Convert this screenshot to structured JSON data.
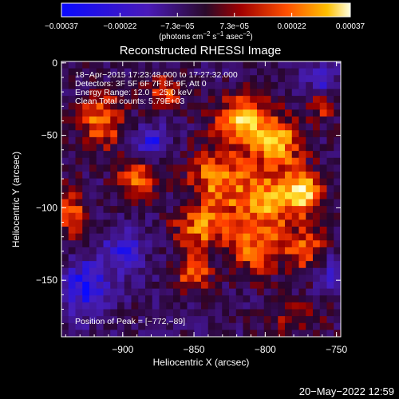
{
  "chart_data": {
    "type": "heatmap",
    "title": "Reconstructed RHESSI Image",
    "xlabel": "Heliocentric X (arcsec)",
    "ylabel": "Heliocentric Y (arcsec)",
    "xlim": [
      -943,
      -747
    ],
    "ylim": [
      -189,
      1
    ],
    "xticks": [
      {
        "value": -900,
        "label": "−900"
      },
      {
        "value": -850,
        "label": "−850"
      },
      {
        "value": -800,
        "label": "−800"
      },
      {
        "value": -750,
        "label": "−750"
      }
    ],
    "yticks": [
      {
        "value": 0,
        "label": "0"
      },
      {
        "value": -50,
        "label": "−50"
      },
      {
        "value": -100,
        "label": "−100"
      },
      {
        "value": -150,
        "label": "−150"
      }
    ],
    "colorbar": {
      "range": [
        -0.00037,
        0.00037
      ],
      "ticks": [
        {
          "value": -0.00037,
          "label": "−0.00037"
        },
        {
          "value": -0.00022,
          "label": "−0.00022"
        },
        {
          "value": -7.3e-05,
          "label": "−7.3e−05"
        },
        {
          "value": 7.3e-05,
          "label": "7.3e−05"
        },
        {
          "value": 0.00022,
          "label": "0.00022"
        },
        {
          "value": 0.00037,
          "label": "0.00037"
        }
      ],
      "unit_main": "(photons cm",
      "unit_sup1": "−2",
      "unit_mid": " s",
      "unit_sup2": "−1",
      "unit_mid2": " asec",
      "unit_sup3": "−2",
      "unit_end": ")"
    },
    "annotations": {
      "time": "18−Apr−2015 17:23:48.000 to 17:27:32.000",
      "detectors": "Detectors: 3F 5F 6F 7F 8F 9F, Att 0",
      "energy": "Energy Range: 12.0 − 25.0 keV",
      "clean": "Clean     Total counts: 5.79E+03",
      "peak": "Position of Peak = [−772,−89]"
    },
    "peak": {
      "x": -772,
      "y": -89
    },
    "bright_regions": [
      {
        "x": -815,
        "y": -40,
        "sx": 14,
        "sy": 12,
        "amp": 0.95
      },
      {
        "x": -790,
        "y": -55,
        "sx": 12,
        "sy": 12,
        "amp": 0.8
      },
      {
        "x": -772,
        "y": -89,
        "sx": 10,
        "sy": 10,
        "amp": 1.0
      },
      {
        "x": -800,
        "y": -95,
        "sx": 16,
        "sy": 16,
        "amp": 0.85
      },
      {
        "x": -835,
        "y": -80,
        "sx": 14,
        "sy": 16,
        "amp": 0.75
      },
      {
        "x": -845,
        "y": -115,
        "sx": 14,
        "sy": 10,
        "amp": 0.7
      },
      {
        "x": -805,
        "y": -130,
        "sx": 14,
        "sy": 12,
        "amp": 0.65
      },
      {
        "x": -770,
        "y": -130,
        "sx": 10,
        "sy": 12,
        "amp": 0.6
      },
      {
        "x": -850,
        "y": -145,
        "sx": 8,
        "sy": 8,
        "amp": 0.8
      },
      {
        "x": -915,
        "y": -40,
        "sx": 12,
        "sy": 14,
        "amp": 0.7
      },
      {
        "x": -890,
        "y": -80,
        "sx": 10,
        "sy": 10,
        "amp": 0.65
      },
      {
        "x": -935,
        "y": -105,
        "sx": 8,
        "sy": 14,
        "amp": 0.6
      },
      {
        "x": -870,
        "y": -20,
        "sx": 10,
        "sy": 8,
        "amp": 0.55
      },
      {
        "x": -760,
        "y": -30,
        "sx": 8,
        "sy": 8,
        "amp": 0.45
      },
      {
        "x": -780,
        "y": -175,
        "sx": 16,
        "sy": 8,
        "amp": 0.4
      }
    ],
    "dark_regions": [
      {
        "x": -925,
        "y": -155,
        "sx": 12,
        "sy": 14,
        "amp": 0.7
      },
      {
        "x": -900,
        "y": -130,
        "sx": 10,
        "sy": 10,
        "amp": 0.55
      },
      {
        "x": -880,
        "y": -55,
        "sx": 8,
        "sy": 8,
        "amp": 0.6
      },
      {
        "x": -760,
        "y": -10,
        "sx": 8,
        "sy": 8,
        "amp": 0.55
      },
      {
        "x": -755,
        "y": -145,
        "sx": 8,
        "sy": 10,
        "amp": 0.45
      }
    ]
  },
  "footer": {
    "timestamp": "20−May−2022 12:59"
  }
}
